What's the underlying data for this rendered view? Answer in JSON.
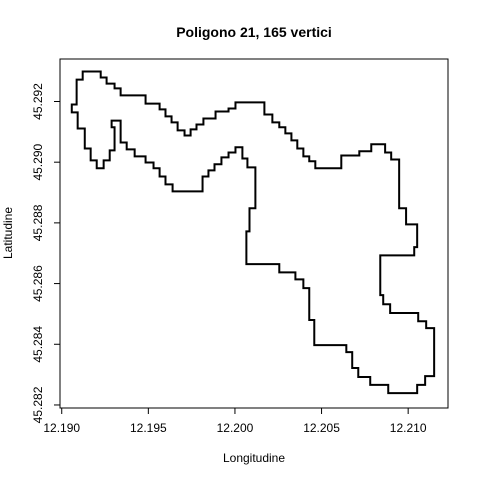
{
  "chart_data": {
    "type": "polygon",
    "title": "Poligono 21, 165 vertici",
    "x_label": "Longitudine",
    "y_label": "Latitudine",
    "color": "#000000",
    "x": [
      12.19121,
      12.19225,
      12.19225,
      12.19259,
      12.19259,
      12.19305,
      12.19305,
      12.1934,
      12.1934,
      12.19484,
      12.19484,
      12.19565,
      12.19565,
      12.19599,
      12.19599,
      12.19634,
      12.19634,
      12.19669,
      12.19669,
      12.19709,
      12.19709,
      12.19744,
      12.19744,
      12.19778,
      12.19778,
      12.19818,
      12.19818,
      12.19888,
      12.19888,
      12.19963,
      12.19963,
      12.20003,
      12.20003,
      12.2017,
      12.2017,
      12.20216,
      12.20216,
      12.20256,
      12.20256,
      12.20291,
      12.20291,
      12.20326,
      12.20326,
      12.2036,
      12.2036,
      12.20395,
      12.20395,
      12.20429,
      12.20429,
      12.20464,
      12.20464,
      12.20614,
      12.20614,
      12.20718,
      12.20718,
      12.20787,
      12.20787,
      12.20867,
      12.20867,
      12.20902,
      12.20902,
      12.20948,
      12.20948,
      12.20988,
      12.20988,
      12.21052,
      12.21052,
      12.21035,
      12.21035,
      12.20839,
      12.20839,
      12.20856,
      12.20856,
      12.20896,
      12.20896,
      12.21058,
      12.21058,
      12.21104,
      12.21104,
      12.2115,
      12.2115,
      12.21098,
      12.21098,
      12.21052,
      12.21052,
      12.20885,
      12.20885,
      12.20781,
      12.20781,
      12.20712,
      12.20712,
      12.20677,
      12.20677,
      12.20643,
      12.20643,
      12.20458,
      12.20458,
      12.20429,
      12.20429,
      12.20395,
      12.20395,
      12.20349,
      12.20349,
      12.20256,
      12.20256,
      12.20066,
      12.20066,
      12.20084,
      12.20084,
      12.20118,
      12.20118,
      12.20072,
      12.20072,
      12.20043,
      12.20043,
      12.20003,
      12.20003,
      12.19963,
      12.19963,
      12.19922,
      12.19922,
      12.19882,
      12.19882,
      12.19847,
      12.19847,
      12.19813,
      12.19813,
      12.1964,
      12.1964,
      12.19599,
      12.19599,
      12.19565,
      12.19565,
      12.1953,
      12.1953,
      12.19484,
      12.19484,
      12.19421,
      12.19421,
      12.19375,
      12.19375,
      12.1934,
      12.1934,
      12.19288,
      12.19288,
      12.19305,
      12.19305,
      12.19277,
      12.19277,
      12.19242,
      12.19242,
      12.19202,
      12.19202,
      12.19167,
      12.19167,
      12.19133,
      12.19133,
      12.19092,
      12.19092,
      12.19058,
      12.19058,
      12.19086,
      12.19086,
      12.19121
    ],
    "y": [
      45.29299,
      45.29299,
      45.29279,
      45.29279,
      45.29259,
      45.29259,
      45.29243,
      45.29243,
      45.2922,
      45.2922,
      45.29193,
      45.29193,
      45.29174,
      45.29174,
      45.29151,
      45.29151,
      45.29131,
      45.29131,
      45.29105,
      45.29105,
      45.29088,
      45.29088,
      45.29108,
      45.29108,
      45.29124,
      45.29124,
      45.29144,
      45.29144,
      45.29167,
      45.29167,
      45.29177,
      45.29177,
      45.29197,
      45.29197,
      45.29157,
      45.29157,
      45.29131,
      45.29131,
      45.29115,
      45.29115,
      45.29095,
      45.29095,
      45.29072,
      45.29072,
      45.29045,
      45.29045,
      45.29019,
      45.29019,
      45.29003,
      45.29003,
      45.2898,
      45.2898,
      45.29022,
      45.29022,
      45.29036,
      45.29036,
      45.29059,
      45.29059,
      45.29032,
      45.29032,
      45.29009,
      45.29009,
      45.28848,
      45.28848,
      45.28795,
      45.28795,
      45.2872,
      45.2872,
      45.28693,
      45.28693,
      45.28562,
      45.28562,
      45.28532,
      45.28532,
      45.28503,
      45.28503,
      45.28476,
      45.28476,
      45.28453,
      45.28453,
      45.28295,
      45.28295,
      45.28266,
      45.28266,
      45.28239,
      45.28239,
      45.28266,
      45.28266,
      45.28292,
      45.28292,
      45.28322,
      45.28322,
      45.28374,
      45.28374,
      45.28397,
      45.28397,
      45.2848,
      45.2848,
      45.28585,
      45.28585,
      45.28614,
      45.28614,
      45.28637,
      45.28637,
      45.28664,
      45.28664,
      45.28772,
      45.28772,
      45.28848,
      45.28848,
      45.28983,
      45.28983,
      45.29012,
      45.29012,
      45.29049,
      45.29049,
      45.29032,
      45.29032,
      45.29016,
      45.29016,
      45.28993,
      45.28993,
      45.28973,
      45.28973,
      45.28953,
      45.28953,
      45.28904,
      45.28904,
      45.28927,
      45.28927,
      45.28953,
      45.28953,
      45.2898,
      45.2898,
      45.28999,
      45.28999,
      45.29019,
      45.29019,
      45.29042,
      45.29042,
      45.29065,
      45.29065,
      45.29137,
      45.29137,
      45.29115,
      45.29115,
      45.29039,
      45.29039,
      45.29006,
      45.29006,
      45.2898,
      45.2898,
      45.29006,
      45.29006,
      45.29045,
      45.29045,
      45.29111,
      45.29111,
      45.29164,
      45.29164,
      45.2919,
      45.2919,
      45.29272,
      45.29272
    ],
    "xlim": [
      12.1899,
      12.2123
    ],
    "ylim": [
      45.2819,
      45.2934
    ],
    "xticks": [
      {
        "value": 12.19,
        "label": "12.190"
      },
      12.195,
      {
        "value": 12.2,
        "label": "12.200"
      },
      12.205,
      {
        "value": 12.21,
        "label": "12.210"
      }
    ],
    "yticks": [
      45.282,
      45.284,
      45.286,
      45.288,
      {
        "value": 45.29,
        "label": "45.290"
      },
      45.292
    ]
  }
}
